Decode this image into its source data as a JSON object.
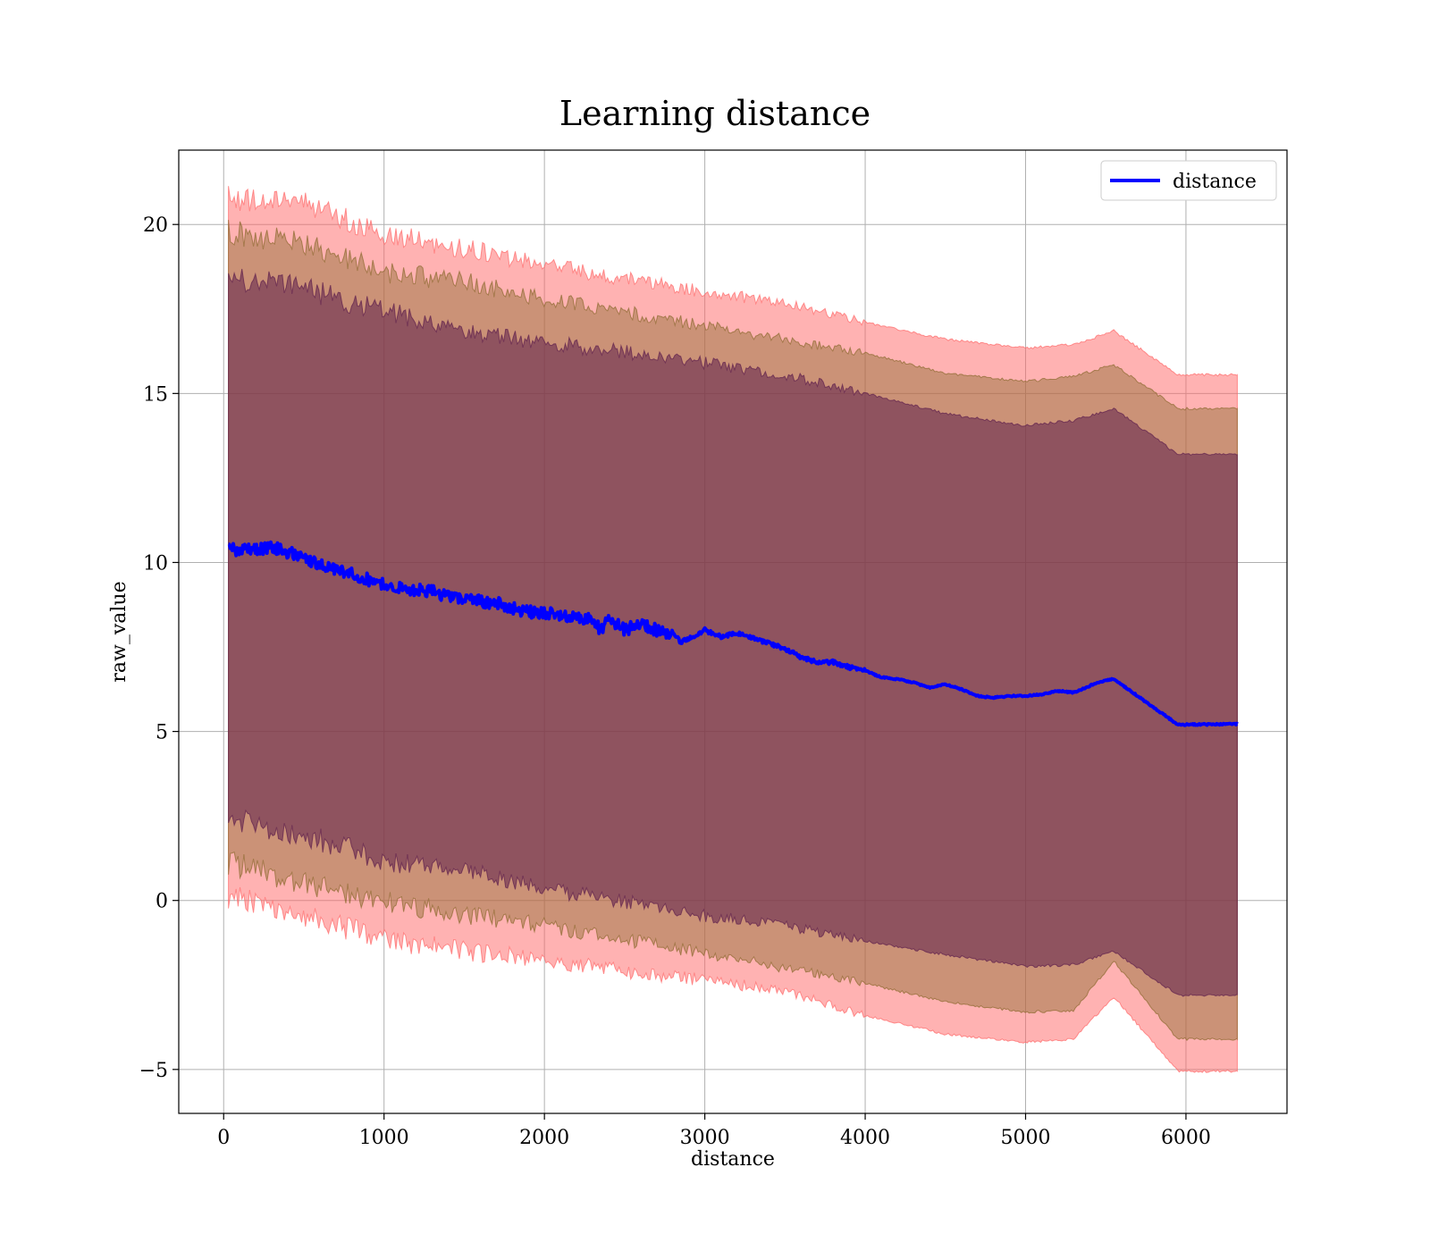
{
  "chart_data": {
    "type": "line",
    "title": "Learning distance",
    "xlabel": "distance",
    "ylabel": "raw_value",
    "xlim": [
      -280,
      6630
    ],
    "ylim": [
      -6.3,
      22.2
    ],
    "xticks": [
      0,
      1000,
      2000,
      3000,
      4000,
      5000,
      6000
    ],
    "yticks": [
      -5,
      0,
      5,
      10,
      15,
      20
    ],
    "xtick_labels": [
      "0",
      "1000",
      "2000",
      "3000",
      "4000",
      "5000",
      "6000"
    ],
    "ytick_labels": [
      "−5",
      "0",
      "5",
      "10",
      "15",
      "20"
    ],
    "grid": true,
    "legend": {
      "placement": "top-right",
      "entries": [
        {
          "label": "distance",
          "color": "#0000ff"
        }
      ]
    },
    "series": [
      {
        "name": "distance",
        "color": "#0000ff",
        "x": [
          30,
          100,
          200,
          300,
          400,
          500,
          600,
          700,
          800,
          900,
          1000,
          1100,
          1200,
          1300,
          1400,
          1500,
          1600,
          1700,
          1800,
          1900,
          2000,
          2100,
          2200,
          2300,
          2350,
          2400,
          2500,
          2600,
          2700,
          2800,
          2850,
          2950,
          3000,
          3100,
          3200,
          3300,
          3400,
          3500,
          3600,
          3700,
          3800,
          3900,
          4000,
          4100,
          4200,
          4300,
          4400,
          4500,
          4600,
          4700,
          4800,
          4900,
          5000,
          5100,
          5200,
          5300,
          5350,
          5450,
          5550,
          5950,
          6320
        ],
        "values": [
          10.45,
          10.35,
          10.4,
          10.45,
          10.3,
          10.15,
          9.95,
          9.8,
          9.65,
          9.5,
          9.35,
          9.25,
          9.2,
          9.15,
          9.0,
          8.95,
          8.85,
          8.8,
          8.65,
          8.55,
          8.5,
          8.45,
          8.35,
          8.3,
          8.0,
          8.35,
          8.0,
          8.2,
          8.0,
          7.9,
          7.65,
          7.85,
          8.0,
          7.8,
          7.9,
          7.75,
          7.6,
          7.45,
          7.2,
          7.05,
          7.05,
          6.9,
          6.8,
          6.6,
          6.55,
          6.45,
          6.3,
          6.4,
          6.25,
          6.05,
          6.0,
          6.05,
          6.05,
          6.1,
          6.2,
          6.15,
          6.25,
          6.45,
          6.55,
          5.2,
          5.22
        ]
      }
    ],
    "bands": [
      {
        "x": [
          30,
          500,
          1000,
          1500,
          2000,
          2500,
          3000,
          3500,
          4000,
          4500,
          5000,
          5300,
          5550,
          5950,
          6320
        ],
        "lower": [
          0.15,
          -0.45,
          -1.15,
          -1.5,
          -1.75,
          -2.1,
          -2.35,
          -2.7,
          -3.4,
          -3.95,
          -4.2,
          -4.1,
          -2.85,
          -5.05,
          -5.05
        ],
        "upper": [
          20.75,
          20.65,
          19.7,
          19.3,
          18.8,
          18.4,
          18.0,
          17.7,
          17.1,
          16.6,
          16.35,
          16.45,
          16.85,
          15.55,
          15.55
        ],
        "color": "#ff6666",
        "opacity": 0.5
      },
      {
        "x": [
          30,
          500,
          1000,
          1500,
          2000,
          2500,
          3000,
          3500,
          4000,
          4500,
          5000,
          5300,
          5550,
          5950,
          6320
        ],
        "lower": [
          1.1,
          0.55,
          -0.05,
          -0.4,
          -0.75,
          -1.15,
          -1.55,
          -2.0,
          -2.45,
          -3.0,
          -3.3,
          -3.25,
          -1.8,
          -4.1,
          -4.1
        ],
        "upper": [
          19.8,
          19.4,
          18.6,
          18.3,
          17.8,
          17.4,
          17.0,
          16.6,
          16.2,
          15.6,
          15.35,
          15.5,
          15.85,
          14.55,
          14.55
        ],
        "color": "#8b6a2f",
        "opacity": 0.45
      },
      {
        "x": [
          30,
          500,
          1000,
          1500,
          2000,
          2500,
          3000,
          3500,
          4000,
          4500,
          5000,
          5300,
          5550,
          5950,
          6320
        ],
        "lower": [
          2.45,
          1.95,
          1.2,
          0.85,
          0.35,
          -0.05,
          -0.45,
          -0.75,
          -1.2,
          -1.6,
          -1.95,
          -1.9,
          -1.5,
          -2.8,
          -2.8
        ],
        "upper": [
          18.4,
          18.1,
          17.4,
          16.9,
          16.5,
          16.25,
          15.9,
          15.55,
          15.0,
          14.4,
          14.05,
          14.2,
          14.55,
          13.2,
          13.2
        ],
        "color": "#5e1f4d",
        "opacity": 0.55
      }
    ]
  }
}
